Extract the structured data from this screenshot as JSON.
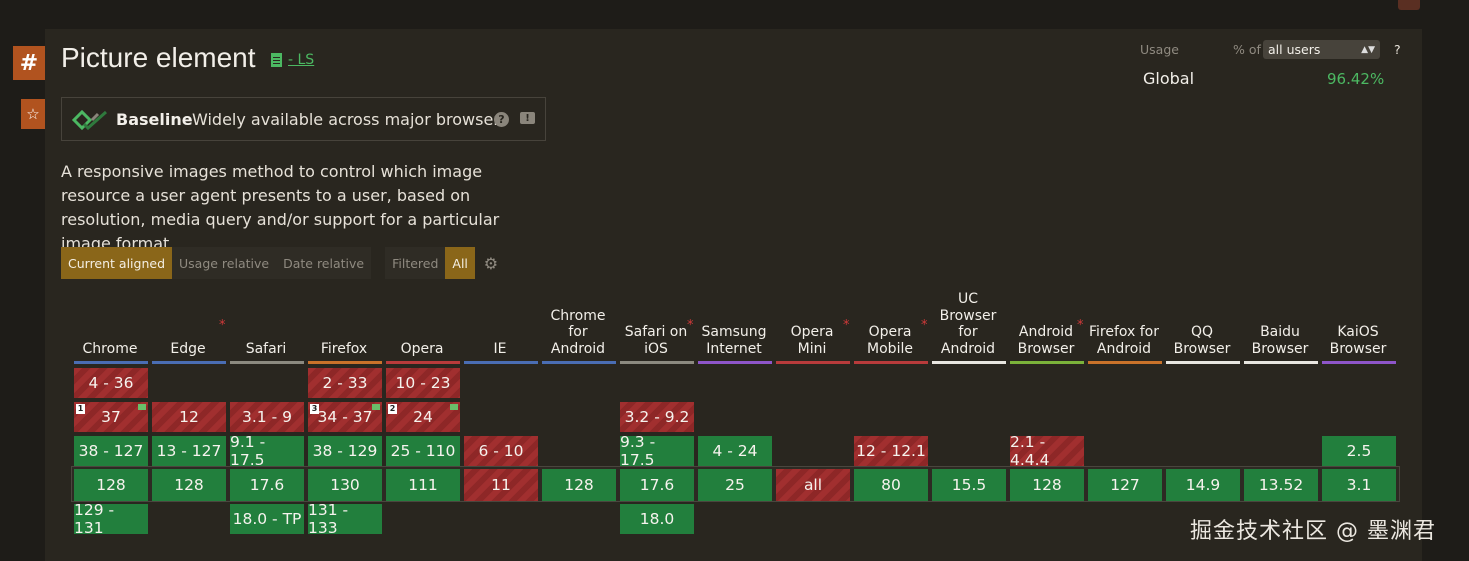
{
  "feature": {
    "title": "Picture element",
    "spec_link": "- LS",
    "baseline_strong": "Baseline",
    "baseline_text": "Widely available across major browsers",
    "description": "A responsive images method to control which image resource a user agent presents to a user, based on resolution, media query and/or support for a particular image format"
  },
  "side": {
    "hash": "#",
    "star": "☆"
  },
  "tabs": {
    "current_aligned": "Current aligned",
    "usage_relative": "Usage relative",
    "date_relative": "Date relative",
    "filtered": "Filtered",
    "all": "All"
  },
  "usage": {
    "label": "Usage",
    "pct_of": "% of",
    "selected": "all users",
    "help": "?",
    "global_label": "Global",
    "global_value": "96.42%"
  },
  "colors": {
    "supported": "#227f3d",
    "unsupported": "#a12f2f",
    "accent": "#8a6619",
    "link": "#4cb862"
  },
  "browsers": [
    {
      "name": "Chrome",
      "line": "#4a6db3",
      "asterisk": false,
      "cells": [
        {
          "t": "4 - 36",
          "s": "n"
        },
        {
          "t": "37",
          "s": "n",
          "note": "1",
          "flag": true
        },
        {
          "t": "38 - 127",
          "s": "y"
        },
        {
          "t": "128",
          "s": "y"
        },
        {
          "t": "129 - 131",
          "s": "y"
        }
      ]
    },
    {
      "name": "Edge",
      "line": "#4a6db3",
      "asterisk": true,
      "cells": [
        null,
        {
          "t": "12",
          "s": "n"
        },
        {
          "t": "13 - 127",
          "s": "y"
        },
        {
          "t": "128",
          "s": "y"
        },
        null
      ]
    },
    {
      "name": "Safari",
      "line": "#8c8a80",
      "asterisk": false,
      "cells": [
        null,
        {
          "t": "3.1 - 9",
          "s": "n"
        },
        {
          "t": "9.1 - 17.5",
          "s": "y"
        },
        {
          "t": "17.6",
          "s": "y"
        },
        {
          "t": "18.0 - TP",
          "s": "y"
        }
      ]
    },
    {
      "name": "Firefox",
      "line": "#c9722a",
      "asterisk": false,
      "cells": [
        {
          "t": "2 - 33",
          "s": "n"
        },
        {
          "t": "34 - 37",
          "s": "n",
          "note": "3",
          "flag": true
        },
        {
          "t": "38 - 129",
          "s": "y"
        },
        {
          "t": "130",
          "s": "y"
        },
        {
          "t": "131 - 133",
          "s": "y"
        }
      ]
    },
    {
      "name": "Opera",
      "line": "#b83b3b",
      "asterisk": false,
      "cells": [
        {
          "t": "10 - 23",
          "s": "n"
        },
        {
          "t": "24",
          "s": "n",
          "note": "2",
          "flag": true
        },
        {
          "t": "25 - 110",
          "s": "y"
        },
        {
          "t": "111",
          "s": "y"
        },
        null
      ]
    },
    {
      "name": "IE",
      "line": "#4a6db3",
      "asterisk": false,
      "cells": [
        null,
        null,
        {
          "t": "6 - 10",
          "s": "n"
        },
        {
          "t": "11",
          "s": "n"
        },
        null
      ]
    },
    {
      "name": "Chrome for Android",
      "line": "#4a6db3",
      "asterisk": false,
      "cells": [
        null,
        null,
        null,
        {
          "t": "128",
          "s": "y"
        },
        null
      ]
    },
    {
      "name": "Safari on iOS",
      "line": "#8c8a80",
      "asterisk": true,
      "cells": [
        null,
        {
          "t": "3.2 - 9.2",
          "s": "n"
        },
        {
          "t": "9.3 - 17.5",
          "s": "y"
        },
        {
          "t": "17.6",
          "s": "y"
        },
        {
          "t": "18.0",
          "s": "y"
        }
      ]
    },
    {
      "name": "Samsung Internet",
      "line": "#8e55c9",
      "asterisk": false,
      "cells": [
        null,
        null,
        {
          "t": "4 - 24",
          "s": "y"
        },
        {
          "t": "25",
          "s": "y"
        },
        null
      ]
    },
    {
      "name": "Opera Mini",
      "line": "#b83b3b",
      "asterisk": true,
      "cells": [
        null,
        null,
        null,
        {
          "t": "all",
          "s": "n"
        },
        null
      ]
    },
    {
      "name": "Opera Mobile",
      "line": "#b83b3b",
      "asterisk": true,
      "cells": [
        null,
        null,
        {
          "t": "12 - 12.1",
          "s": "n"
        },
        {
          "t": "80",
          "s": "y"
        },
        null
      ]
    },
    {
      "name": "UC Browser for Android",
      "line": "#e8e6e0",
      "asterisk": false,
      "cells": [
        null,
        null,
        null,
        {
          "t": "15.5",
          "s": "y"
        },
        null
      ]
    },
    {
      "name": "Android Browser",
      "line": "#7bb33a",
      "asterisk": true,
      "cells": [
        null,
        null,
        {
          "t": "2.1 - 4.4.4",
          "s": "n"
        },
        {
          "t": "128",
          "s": "y"
        },
        null
      ]
    },
    {
      "name": "Firefox for Android",
      "line": "#c9722a",
      "asterisk": false,
      "cells": [
        null,
        null,
        null,
        {
          "t": "127",
          "s": "y"
        },
        null
      ]
    },
    {
      "name": "QQ Browser",
      "line": "#e8e6e0",
      "asterisk": false,
      "cells": [
        null,
        null,
        null,
        {
          "t": "14.9",
          "s": "y"
        },
        null
      ]
    },
    {
      "name": "Baidu Browser",
      "line": "#e8e6e0",
      "asterisk": false,
      "cells": [
        null,
        null,
        null,
        {
          "t": "13.52",
          "s": "y"
        },
        null
      ]
    },
    {
      "name": "KaiOS Browser",
      "line": "#8e55c9",
      "asterisk": false,
      "cells": [
        null,
        null,
        {
          "t": "2.5",
          "s": "y"
        },
        {
          "t": "3.1",
          "s": "y"
        },
        null
      ]
    }
  ],
  "watermark": "掘金技术社区 @ 墨渊君"
}
